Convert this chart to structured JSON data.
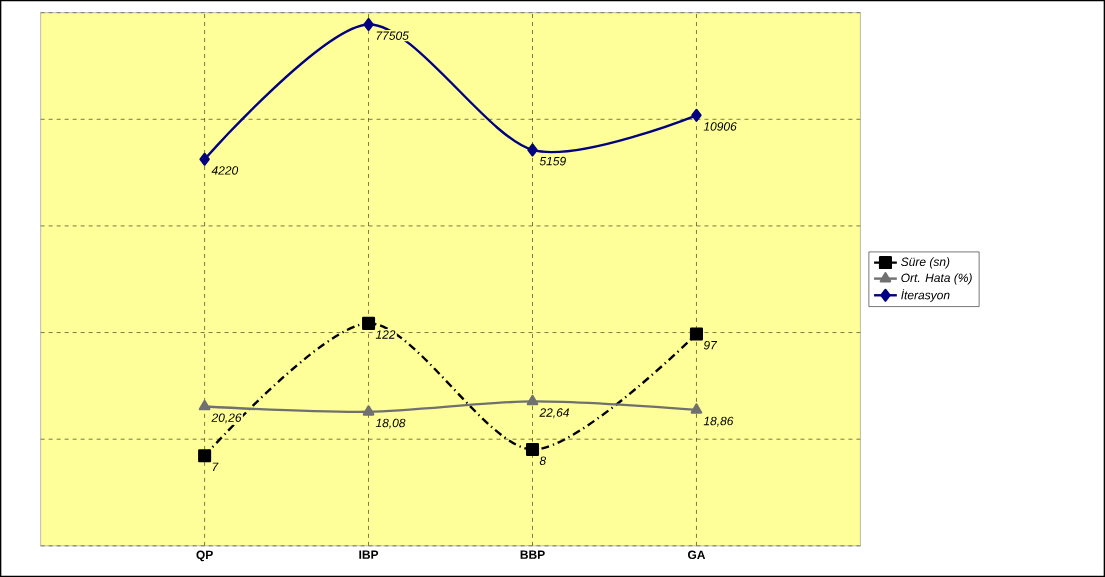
{
  "chart_data": {
    "type": "line",
    "categories": [
      "QP",
      "IBP",
      "BBP",
      "GA"
    ],
    "log": "y",
    "ylim": [
      1,
      100000
    ],
    "yticks": [
      {
        "value": 1,
        "label": null
      },
      {
        "value": 10,
        "label": null
      },
      {
        "value": 100,
        "label": null
      },
      {
        "value": 1000,
        "label": null
      },
      {
        "value": 10000,
        "label": null
      },
      {
        "value": 100000,
        "label": null
      }
    ],
    "tick_labels": "x",
    "grid": true,
    "legend": "right",
    "series": [
      {
        "name": "Süre (sn)",
        "color": "#000000",
        "values": [
          7,
          122,
          8,
          97
        ],
        "value_labels": [
          "7",
          "122",
          "8",
          "97"
        ],
        "marker": "square",
        "line_style": "dashed"
      },
      {
        "name": "Ort. Hata (%)",
        "color": "#707070",
        "values": [
          20.26,
          18.08,
          22.64,
          18.86
        ],
        "value_labels": [
          "20,26",
          "18,08",
          "22,64",
          "18,86"
        ],
        "marker": "triangle",
        "line_style": "solid"
      },
      {
        "name": "İterasyon",
        "color": "#000080",
        "values": [
          4220,
          77505,
          5159,
          10906
        ],
        "value_labels": [
          "4220",
          "77505",
          "5159",
          "10906"
        ],
        "marker": "diamond",
        "line_style": "solid"
      }
    ]
  }
}
